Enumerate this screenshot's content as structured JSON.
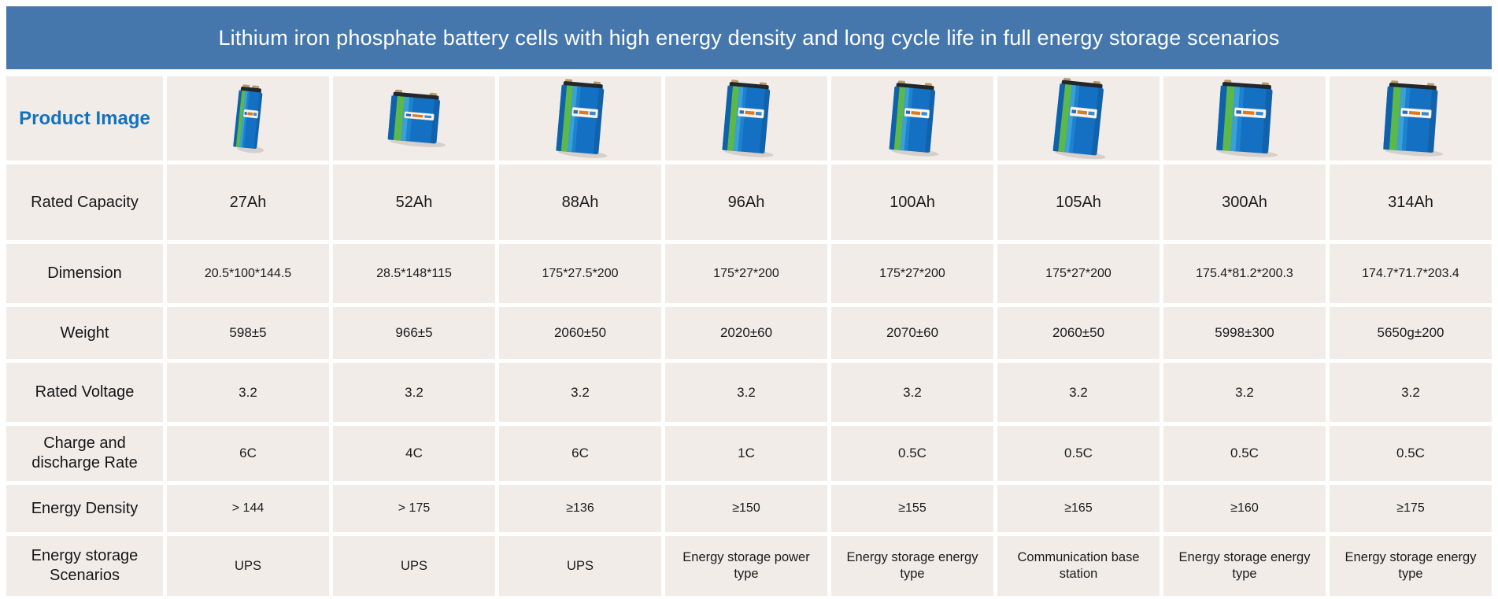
{
  "banner": {
    "title": "Lithium iron phosphate battery cells with high energy density and long cycle life in full energy storage scenarios",
    "bg_color": "#4577ad",
    "text_color": "#ffffff"
  },
  "table": {
    "row_labels": {
      "product_image": "Product Image",
      "capacity": "Rated Capacity",
      "dimension": "Dimension",
      "weight": "Weight",
      "voltage": "Rated Voltage",
      "rate": "Charge and discharge Rate",
      "density": "Energy Density",
      "scenario": "Energy storage Scenarios"
    },
    "columns": [
      {
        "image": "blue-green prismatic battery cell, thin small",
        "capacity": "27Ah",
        "dimension": "20.5*100*144.5",
        "weight": "598±5",
        "voltage": "3.2",
        "rate": "6C",
        "density": "> 144",
        "scenario": "UPS"
      },
      {
        "image": "blue-green prismatic battery cell, wide short",
        "capacity": "52Ah",
        "dimension": "28.5*148*115",
        "weight": "966±5",
        "voltage": "3.2",
        "rate": "4C",
        "density": "> 175",
        "scenario": "UPS"
      },
      {
        "image": "blue-green prismatic battery cell, tall",
        "capacity": "88Ah",
        "dimension": "175*27.5*200",
        "weight": "2060±50",
        "voltage": "3.2",
        "rate": "6C",
        "density": "≥136",
        "scenario": "UPS"
      },
      {
        "image": "blue-green prismatic battery cell, tall",
        "capacity": "96Ah",
        "dimension": "175*27*200",
        "weight": "2020±60",
        "voltage": "3.2",
        "rate": "1C",
        "density": "≥150",
        "scenario": "Energy storage power type"
      },
      {
        "image": "blue-green prismatic battery cell, tall",
        "capacity": "100Ah",
        "dimension": "175*27*200",
        "weight": "2070±60",
        "voltage": "3.2",
        "rate": "0.5C",
        "density": "≥155",
        "scenario": "Energy storage energy type"
      },
      {
        "image": "blue-green prismatic battery cell, tall",
        "capacity": "105Ah",
        "dimension": "175*27*200",
        "weight": "2060±50",
        "voltage": "3.2",
        "rate": "0.5C",
        "density": "≥165",
        "scenario": "Communication base station"
      },
      {
        "image": "blue-green prismatic battery cell, wide tall",
        "capacity": "300Ah",
        "dimension": "175.4*81.2*200.3",
        "weight": "5998±300",
        "voltage": "3.2",
        "rate": "0.5C",
        "density": "≥160",
        "scenario": "Energy storage energy type"
      },
      {
        "image": "blue-green prismatic battery cell, wide tall",
        "capacity": "314Ah",
        "dimension": "174.7*71.7*203.4",
        "weight": "5650g±200",
        "voltage": "3.2",
        "rate": "0.5C",
        "density": "≥175",
        "scenario": "Energy storage energy type"
      }
    ],
    "cell_bg_color": "#f2ece9",
    "battery_colors": {
      "body_blue": "#1470c2",
      "stripe_green": "#5cb84a",
      "stripe_light_blue": "#3aa0d9",
      "top_cap_dark": "#23272b",
      "terminal_gold": "#b99a6a"
    }
  }
}
